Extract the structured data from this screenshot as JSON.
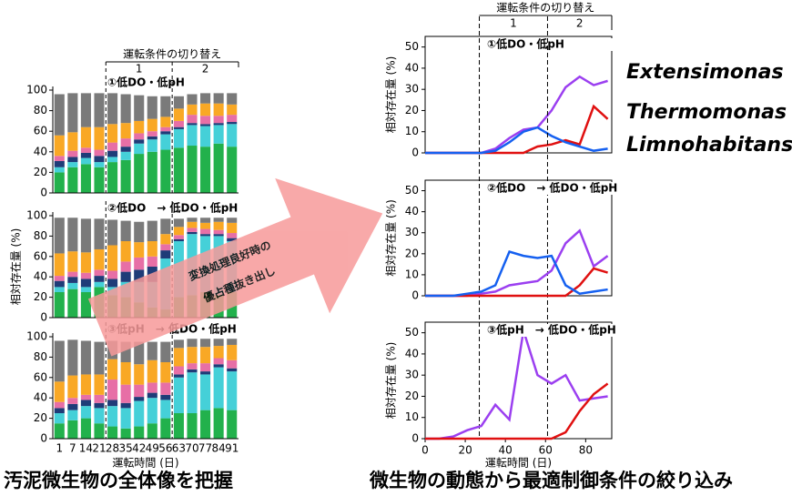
{
  "captions": [
    "汚泥微生物の全体像を把握",
    "微生物の動態から最適制御条件の絞り込み"
  ],
  "arrow_text": [
    "変換処理良好時の",
    "優占種抜き出し"
  ],
  "chart_data": [
    {
      "type": "stacked_bar",
      "title": "①低DO・低pH",
      "switch_label": "運転条件の切り替え",
      "phases": [
        "1",
        "2"
      ],
      "ylim": [
        0,
        100
      ],
      "yticks": [
        0,
        20,
        40,
        60,
        80,
        100
      ],
      "series": [
        {
          "color": "#22b14c",
          "values": [
            20,
            25,
            28,
            25,
            30,
            32,
            38,
            40,
            42,
            44,
            46,
            45,
            48,
            45
          ]
        },
        {
          "color": "#45d0d8",
          "values": [
            5,
            5,
            6,
            5,
            5,
            8,
            10,
            12,
            15,
            18,
            20,
            20,
            18,
            22
          ]
        },
        {
          "color": "#1f3c78",
          "values": [
            6,
            5,
            5,
            6,
            6,
            5,
            4,
            3,
            3,
            2,
            2,
            2,
            2,
            2
          ]
        },
        {
          "color": "#e76fa6",
          "values": [
            5,
            6,
            5,
            6,
            8,
            8,
            6,
            5,
            4,
            6,
            8,
            8,
            7,
            7
          ]
        },
        {
          "color": "#f9a825",
          "values": [
            20,
            18,
            20,
            22,
            18,
            15,
            12,
            12,
            10,
            12,
            10,
            12,
            12,
            10
          ]
        },
        {
          "color": "#7a7a7a",
          "values": [
            40,
            38,
            33,
            33,
            30,
            28,
            25,
            22,
            20,
            12,
            10,
            10,
            10,
            11
          ]
        }
      ]
    },
    {
      "type": "stacked_bar",
      "title": "②低DO　→ 低DO・低pH",
      "ylabel": "相対存在量 (%)",
      "ylim": [
        0,
        100
      ],
      "yticks": [
        0,
        20,
        40,
        60,
        80,
        100
      ],
      "series": [
        {
          "color": "#22b14c",
          "values": [
            25,
            28,
            25,
            30,
            22,
            20,
            15,
            10,
            8,
            20,
            22,
            25,
            22,
            25
          ]
        },
        {
          "color": "#45d0d8",
          "values": [
            5,
            6,
            5,
            5,
            8,
            15,
            20,
            25,
            50,
            55,
            60,
            55,
            58,
            50
          ]
        },
        {
          "color": "#1f3c78",
          "values": [
            6,
            6,
            8,
            6,
            8,
            10,
            12,
            15,
            8,
            2,
            2,
            2,
            2,
            3
          ]
        },
        {
          "color": "#e76fa6",
          "values": [
            5,
            5,
            6,
            6,
            8,
            10,
            12,
            10,
            6,
            4,
            4,
            5,
            4,
            5
          ]
        },
        {
          "color": "#f9a825",
          "values": [
            22,
            20,
            20,
            20,
            25,
            20,
            15,
            15,
            10,
            8,
            6,
            6,
            8,
            10
          ]
        },
        {
          "color": "#7a7a7a",
          "values": [
            35,
            33,
            33,
            30,
            25,
            20,
            20,
            20,
            15,
            8,
            4,
            5,
            4,
            5
          ]
        }
      ]
    },
    {
      "type": "stacked_bar",
      "title": "③低pH　→ 低DO・低pH",
      "xlabel": "運転時間 (日)",
      "categories": [
        "1",
        "7",
        "14",
        "21",
        "28",
        "35",
        "42",
        "49",
        "56",
        "63",
        "70",
        "77",
        "84",
        "91"
      ],
      "ylim": [
        0,
        100
      ],
      "yticks": [
        0,
        20,
        40,
        60,
        80,
        100
      ],
      "series": [
        {
          "color": "#22b14c",
          "values": [
            15,
            18,
            20,
            15,
            12,
            10,
            12,
            15,
            20,
            25,
            25,
            28,
            30,
            28
          ]
        },
        {
          "color": "#45d0d8",
          "values": [
            10,
            10,
            12,
            15,
            20,
            20,
            25,
            25,
            18,
            35,
            40,
            35,
            40,
            38
          ]
        },
        {
          "color": "#1f3c78",
          "values": [
            5,
            6,
            6,
            5,
            6,
            5,
            4,
            5,
            5,
            3,
            3,
            3,
            3,
            3
          ]
        },
        {
          "color": "#e76fa6",
          "values": [
            6,
            6,
            5,
            8,
            20,
            18,
            12,
            10,
            12,
            8,
            6,
            8,
            6,
            8
          ]
        },
        {
          "color": "#f9a825",
          "values": [
            20,
            22,
            20,
            20,
            20,
            22,
            20,
            22,
            20,
            18,
            16,
            16,
            12,
            15
          ]
        },
        {
          "color": "#7a7a7a",
          "values": [
            40,
            35,
            33,
            32,
            18,
            20,
            22,
            18,
            20,
            8,
            8,
            8,
            7,
            6
          ]
        }
      ]
    },
    {
      "type": "line",
      "title": "①低DO・低pH",
      "switch_label": "運転条件の切り替え",
      "phases": [
        "1",
        "2"
      ],
      "switch_x": [
        27,
        61
      ],
      "ylabel": "相対存在量 (%)",
      "xlim": [
        0,
        93
      ],
      "ylim": [
        0,
        55
      ],
      "yticks": [
        0,
        10,
        20,
        30,
        40,
        50
      ],
      "x": [
        0,
        7,
        14,
        21,
        28,
        35,
        42,
        49,
        56,
        63,
        70,
        77,
        84,
        91
      ],
      "series": [
        {
          "name": "Extensimonas",
          "color": "#9b3ff0",
          "values": [
            0,
            0,
            0,
            0,
            0,
            2,
            7,
            11,
            12,
            20,
            31,
            36,
            32,
            34
          ]
        },
        {
          "name": "Thermomonas",
          "color": "#e01010",
          "values": [
            0,
            0,
            0,
            0,
            0,
            0,
            0,
            0,
            3,
            4,
            6,
            4,
            22,
            16
          ]
        },
        {
          "name": "Limnohabitans",
          "color": "#1560f0",
          "values": [
            0,
            0,
            0,
            0,
            0,
            1,
            5,
            10,
            12,
            8,
            5,
            3,
            1,
            2
          ]
        }
      ]
    },
    {
      "type": "line",
      "title": "②低DO　→ 低DO・低pH",
      "ylabel": "相対存在量 (%)",
      "xlim": [
        0,
        93
      ],
      "ylim": [
        0,
        55
      ],
      "yticks": [
        0,
        10,
        20,
        30,
        40,
        50
      ],
      "x": [
        0,
        7,
        14,
        21,
        28,
        35,
        42,
        49,
        56,
        63,
        70,
        77,
        84,
        91
      ],
      "series": [
        {
          "color": "#9b3ff0",
          "values": [
            0,
            0,
            0,
            0,
            1,
            2,
            5,
            6,
            7,
            12,
            25,
            31,
            14,
            19
          ]
        },
        {
          "color": "#e01010",
          "values": [
            0,
            0,
            0,
            0,
            0,
            0,
            0,
            0,
            0,
            0,
            0,
            5,
            13,
            11
          ]
        },
        {
          "color": "#1560f0",
          "values": [
            0,
            0,
            0,
            1,
            2,
            5,
            21,
            19,
            18,
            19,
            5,
            1,
            2,
            3
          ]
        }
      ]
    },
    {
      "type": "line",
      "title": "③低pH　→ 低DO・低pH",
      "ylabel": "相対存在量 (%)",
      "xlabel": "運転時間 (日)",
      "xlim": [
        0,
        93
      ],
      "ylim": [
        0,
        55
      ],
      "yticks": [
        0,
        10,
        20,
        30,
        40,
        50
      ],
      "xticks": [
        0,
        20,
        40,
        60,
        80
      ],
      "x": [
        0,
        7,
        14,
        21,
        28,
        35,
        42,
        49,
        56,
        63,
        70,
        77,
        84,
        91
      ],
      "series": [
        {
          "color": "#9b3ff0",
          "values": [
            0,
            0,
            1,
            4,
            6,
            16,
            9,
            51,
            30,
            26,
            30,
            18,
            19,
            20
          ]
        },
        {
          "color": "#e01010",
          "values": [
            0,
            0,
            0,
            0,
            0,
            0,
            0,
            0,
            0,
            0,
            3,
            13,
            21,
            26
          ]
        }
      ]
    }
  ]
}
